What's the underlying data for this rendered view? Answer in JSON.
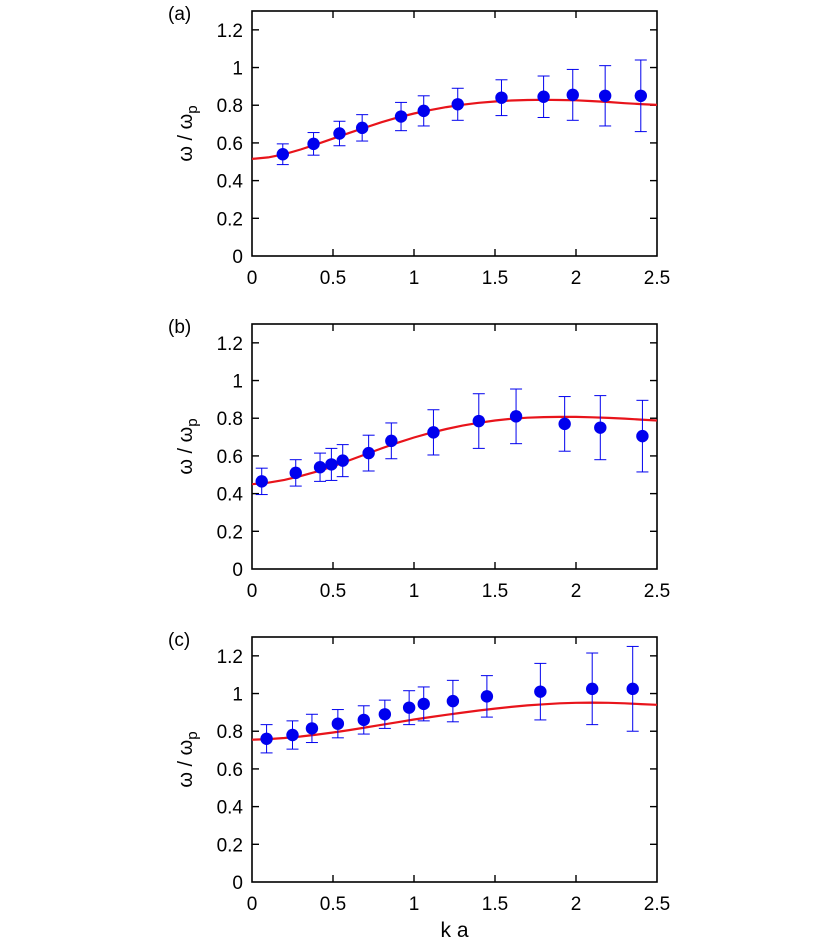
{
  "colors": {
    "model": "#e8141b",
    "data": "#0000ee",
    "axes": "#000000"
  },
  "chart_data": [
    {
      "type": "scatter",
      "panel_label": "(a)",
      "xlabel": "",
      "ylabel": "ω / ωp",
      "xlim": [
        0,
        2.5
      ],
      "ylim": [
        0,
        1.3
      ],
      "xticks": [
        "0",
        "0.5",
        "1",
        "1.5",
        "2",
        "2.5"
      ],
      "yticks": [
        "0",
        "0.2",
        "0.4",
        "0.6",
        "0.8",
        "1",
        "1.2"
      ],
      "grid": false,
      "series": [
        {
          "style": "points-with-error-bars",
          "x": [
            0.19,
            0.38,
            0.54,
            0.68,
            0.92,
            1.06,
            1.27,
            1.54,
            1.8,
            1.98,
            2.18,
            2.4
          ],
          "y": [
            0.54,
            0.595,
            0.65,
            0.68,
            0.74,
            0.77,
            0.805,
            0.84,
            0.845,
            0.855,
            0.85,
            0.85
          ],
          "err": [
            0.055,
            0.06,
            0.065,
            0.07,
            0.075,
            0.08,
            0.085,
            0.095,
            0.11,
            0.135,
            0.16,
            0.19
          ]
        },
        {
          "style": "line",
          "x": [
            0,
            0.1,
            0.2,
            0.3,
            0.4,
            0.5,
            0.6,
            0.7,
            0.8,
            0.9,
            1.0,
            1.1,
            1.2,
            1.3,
            1.4,
            1.5,
            1.6,
            1.7,
            1.8,
            1.9,
            2.0,
            2.1,
            2.2,
            2.3,
            2.4,
            2.5
          ],
          "y": [
            0.515,
            0.523,
            0.54,
            0.565,
            0.593,
            0.623,
            0.653,
            0.682,
            0.71,
            0.735,
            0.756,
            0.774,
            0.79,
            0.803,
            0.813,
            0.82,
            0.825,
            0.828,
            0.829,
            0.828,
            0.826,
            0.822,
            0.817,
            0.811,
            0.806,
            0.802
          ]
        }
      ]
    },
    {
      "type": "scatter",
      "panel_label": "(b)",
      "xlabel": "",
      "ylabel": "ω / ωp",
      "xlim": [
        0,
        2.5
      ],
      "ylim": [
        0,
        1.3
      ],
      "xticks": [
        "0",
        "0.5",
        "1",
        "1.5",
        "2",
        "2.5"
      ],
      "yticks": [
        "0",
        "0.2",
        "0.4",
        "0.6",
        "0.8",
        "1",
        "1.2"
      ],
      "grid": false,
      "series": [
        {
          "style": "points-with-error-bars",
          "x": [
            0.06,
            0.27,
            0.42,
            0.49,
            0.56,
            0.72,
            0.86,
            1.12,
            1.4,
            1.63,
            1.93,
            2.15,
            2.41
          ],
          "y": [
            0.465,
            0.51,
            0.54,
            0.555,
            0.575,
            0.615,
            0.68,
            0.725,
            0.785,
            0.81,
            0.77,
            0.75,
            0.705
          ],
          "err": [
            0.07,
            0.07,
            0.075,
            0.085,
            0.085,
            0.095,
            0.095,
            0.12,
            0.145,
            0.145,
            0.145,
            0.17,
            0.19
          ]
        },
        {
          "style": "line",
          "x": [
            0,
            0.1,
            0.2,
            0.3,
            0.4,
            0.5,
            0.6,
            0.7,
            0.8,
            0.9,
            1.0,
            1.1,
            1.2,
            1.3,
            1.4,
            1.5,
            1.6,
            1.7,
            1.8,
            1.9,
            2.0,
            2.1,
            2.2,
            2.3,
            2.4,
            2.5
          ],
          "y": [
            0.45,
            0.458,
            0.473,
            0.493,
            0.517,
            0.545,
            0.576,
            0.608,
            0.64,
            0.67,
            0.698,
            0.722,
            0.743,
            0.761,
            0.776,
            0.788,
            0.797,
            0.803,
            0.806,
            0.807,
            0.807,
            0.805,
            0.802,
            0.798,
            0.793,
            0.788
          ]
        }
      ]
    },
    {
      "type": "scatter",
      "panel_label": "(c)",
      "xlabel": "k a",
      "ylabel": "ω / ωp",
      "xlim": [
        0,
        2.5
      ],
      "ylim": [
        0,
        1.3
      ],
      "xticks": [
        "0",
        "0.5",
        "1",
        "1.5",
        "2",
        "2.5"
      ],
      "yticks": [
        "0",
        "0.2",
        "0.4",
        "0.6",
        "0.8",
        "1",
        "1.2"
      ],
      "grid": false,
      "series": [
        {
          "style": "points-with-error-bars",
          "x": [
            0.09,
            0.25,
            0.37,
            0.53,
            0.69,
            0.82,
            0.97,
            1.06,
            1.24,
            1.45,
            1.78,
            2.1,
            2.35
          ],
          "y": [
            0.76,
            0.78,
            0.815,
            0.84,
            0.86,
            0.89,
            0.925,
            0.945,
            0.96,
            0.985,
            1.01,
            1.025,
            1.025
          ],
          "err": [
            0.075,
            0.075,
            0.075,
            0.075,
            0.075,
            0.075,
            0.09,
            0.09,
            0.11,
            0.11,
            0.15,
            0.19,
            0.225
          ]
        },
        {
          "style": "line",
          "x": [
            0,
            0.1,
            0.2,
            0.3,
            0.4,
            0.5,
            0.6,
            0.7,
            0.8,
            0.9,
            1.0,
            1.1,
            1.2,
            1.3,
            1.4,
            1.5,
            1.6,
            1.7,
            1.8,
            1.9,
            2.0,
            2.1,
            2.2,
            2.3,
            2.4,
            2.5
          ],
          "y": [
            0.755,
            0.758,
            0.764,
            0.772,
            0.782,
            0.793,
            0.806,
            0.82,
            0.834,
            0.848,
            0.862,
            0.875,
            0.887,
            0.899,
            0.91,
            0.92,
            0.929,
            0.937,
            0.943,
            0.948,
            0.951,
            0.952,
            0.951,
            0.948,
            0.944,
            0.94
          ]
        }
      ]
    }
  ]
}
